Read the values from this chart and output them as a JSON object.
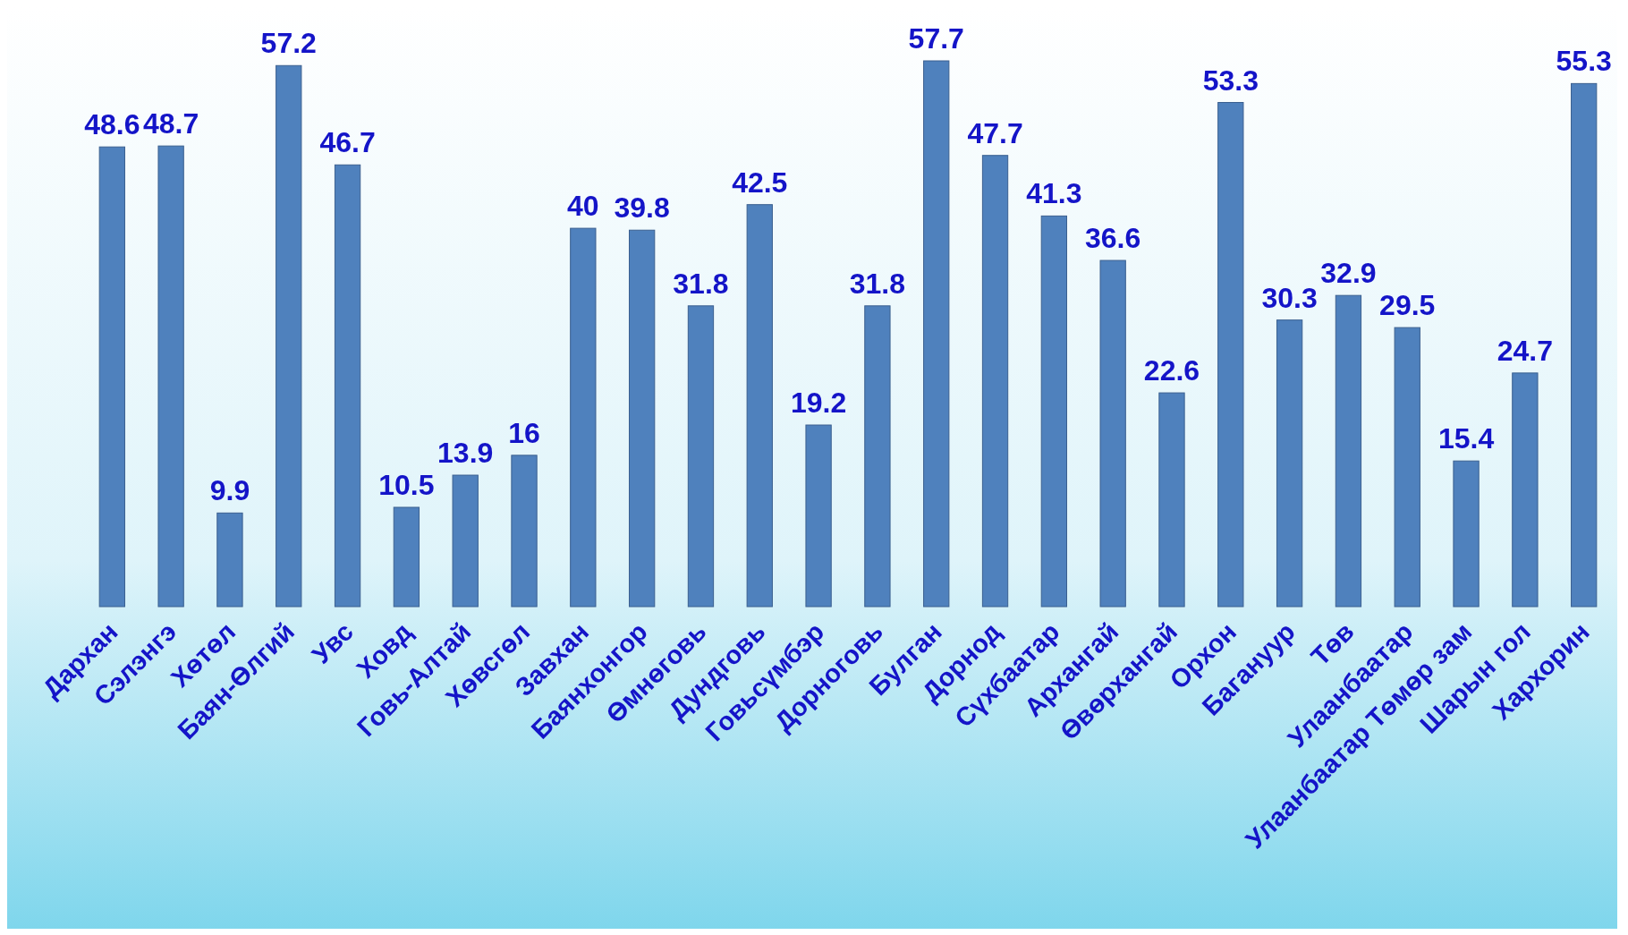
{
  "chart_data": {
    "type": "bar",
    "categories": [
      "Дархан",
      "Сэлэнгэ",
      "Хөтөл",
      "Баян-Өлгий",
      "Увс",
      "Ховд",
      "Говь-Алтай",
      "Хөвсгөл",
      "Завхан",
      "Баянхонгор",
      "Өмнөговь",
      "Дундговь",
      "Говьсүмбэр",
      "Дорноговь",
      "Булган",
      "Дорнод",
      "Сүхбаатар",
      "Архангай",
      "Өвөрхангай",
      "Орхон",
      "Багануур",
      "Төв",
      "Улаанбаатар",
      "Улаанбаатар Төмөр зам",
      "Шарын гол",
      "Хархорин"
    ],
    "values": [
      48.6,
      48.7,
      9.9,
      57.2,
      46.7,
      10.5,
      13.9,
      16,
      40,
      39.8,
      31.8,
      42.5,
      19.2,
      31.8,
      57.7,
      47.7,
      41.3,
      36.6,
      22.6,
      53.3,
      30.3,
      32.9,
      29.5,
      15.4,
      24.7,
      55.3
    ],
    "color": "#4f81bd",
    "data_labels": true
  }
}
